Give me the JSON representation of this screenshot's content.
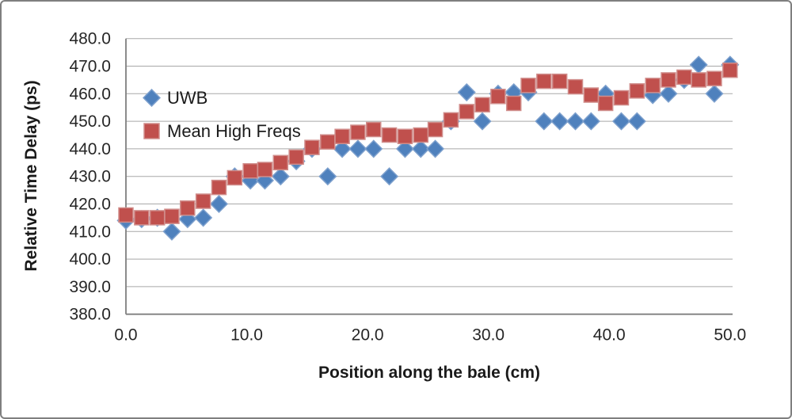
{
  "chart_data": {
    "type": "scatter",
    "title": "",
    "xlabel": "Position along the bale (cm)",
    "ylabel": "Relative Time Delay (ps)",
    "xlim": [
      0,
      50
    ],
    "ylim": [
      380,
      480
    ],
    "x_ticks": [
      "0.0",
      "10.0",
      "20.0",
      "30.0",
      "40.0",
      "50.0"
    ],
    "y_ticks": [
      "480.0",
      "470.0",
      "460.0",
      "450.0",
      "440.0",
      "430.0",
      "420.0",
      "410.0",
      "400.0",
      "390.0",
      "380.0"
    ],
    "grid": "horizontal",
    "legend_position": "inside-top-left",
    "x": [
      0,
      1.3,
      2.6,
      3.8,
      5.1,
      6.4,
      7.7,
      9.0,
      10.3,
      11.5,
      12.8,
      14.1,
      15.4,
      16.7,
      17.9,
      19.2,
      20.5,
      21.8,
      23.1,
      24.4,
      25.6,
      26.9,
      28.2,
      29.5,
      30.8,
      32.1,
      33.3,
      34.6,
      35.9,
      37.2,
      38.5,
      39.7,
      41.0,
      42.3,
      43.6,
      44.9,
      46.2,
      47.4,
      48.7,
      50.0
    ],
    "series": [
      {
        "name": "UWB",
        "marker": "diamond",
        "color": "#4f81bd",
        "edge_color": "#7da0cd",
        "values": [
          414,
          414.5,
          415,
          410,
          414.5,
          415,
          420,
          430,
          428.5,
          428.5,
          430,
          435.5,
          440,
          430,
          440,
          440,
          440,
          430,
          440,
          440,
          440,
          450,
          460.5,
          450,
          460,
          460.5,
          460.5,
          450,
          450,
          450,
          450,
          460,
          450,
          450,
          459.5,
          460,
          465,
          470.5,
          460,
          470.5
        ]
      },
      {
        "name": "Mean High Freqs",
        "marker": "square",
        "color": "#c0504d",
        "edge_color": "#d08d8b",
        "values": [
          416,
          415,
          415,
          415.5,
          418.5,
          421,
          426,
          429.5,
          432,
          432.5,
          435,
          437,
          440.5,
          442.5,
          444.5,
          446,
          447,
          445,
          444.5,
          445,
          447,
          450.5,
          453.5,
          456,
          459,
          456.5,
          463,
          464.5,
          464.5,
          462.5,
          459.5,
          456.5,
          458.5,
          461,
          463,
          465,
          466,
          465,
          465.5,
          468.5
        ]
      }
    ],
    "colors": {
      "gridline": "#a8a8a8",
      "axis_line": "#7f7f7f",
      "tick_label": "#262626",
      "background": "#ffffff",
      "frame_border": "#7f7f7f"
    }
  }
}
